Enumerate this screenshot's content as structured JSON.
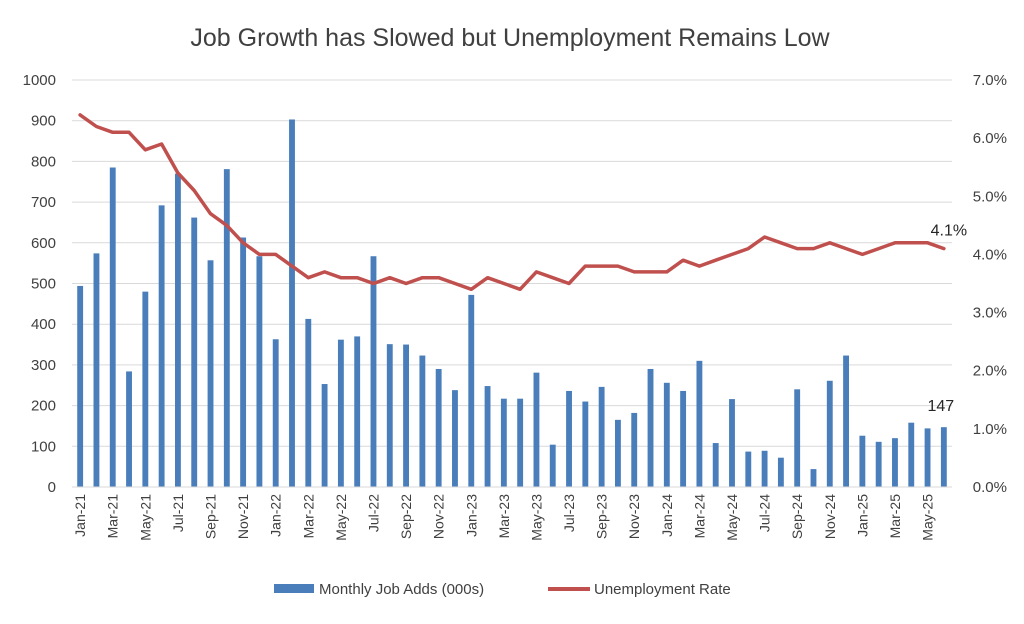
{
  "chart_data": {
    "type": "bar+line",
    "title": "Job Growth has Slowed but Unemployment Remains Low",
    "categories": [
      "Jan-21",
      "Feb-21",
      "Mar-21",
      "Apr-21",
      "May-21",
      "Jun-21",
      "Jul-21",
      "Aug-21",
      "Sep-21",
      "Oct-21",
      "Nov-21",
      "Dec-21",
      "Jan-22",
      "Feb-22",
      "Mar-22",
      "Apr-22",
      "May-22",
      "Jun-22",
      "Jul-22",
      "Aug-22",
      "Sep-22",
      "Oct-22",
      "Nov-22",
      "Dec-22",
      "Jan-23",
      "Feb-23",
      "Mar-23",
      "Apr-23",
      "May-23",
      "Jun-23",
      "Jul-23",
      "Aug-23",
      "Sep-23",
      "Oct-23",
      "Nov-23",
      "Dec-23",
      "Jan-24",
      "Feb-24",
      "Mar-24",
      "Apr-24",
      "May-24",
      "Jun-24",
      "Jul-24",
      "Aug-24",
      "Sep-24",
      "Oct-24",
      "Nov-24",
      "Dec-24",
      "Jan-25",
      "Feb-25",
      "Mar-25",
      "Apr-25",
      "May-25",
      "Jun-25"
    ],
    "xtick_labels": [
      "Jan-21",
      "Mar-21",
      "May-21",
      "Jul-21",
      "Sep-21",
      "Nov-21",
      "Jan-22",
      "Mar-22",
      "May-22",
      "Jul-22",
      "Sep-22",
      "Nov-22",
      "Jan-23",
      "Mar-23",
      "May-23",
      "Jul-23",
      "Sep-23",
      "Nov-23",
      "Jan-24",
      "Mar-24",
      "May-24",
      "Jul-24",
      "Sep-24",
      "Nov-24",
      "Jan-25",
      "Mar-25",
      "May-25"
    ],
    "series": [
      {
        "name": "Monthly Job Adds (000s)",
        "type": "bar",
        "axis": "left",
        "color": "#4a7ebb",
        "values": [
          494,
          574,
          785,
          284,
          480,
          692,
          770,
          662,
          557,
          781,
          613,
          567,
          363,
          903,
          413,
          253,
          362,
          370,
          567,
          351,
          350,
          323,
          290,
          238,
          472,
          248,
          217,
          217,
          281,
          104,
          236,
          210,
          246,
          165,
          182,
          290,
          256,
          236,
          310,
          108,
          216,
          87,
          89,
          72,
          240,
          44,
          261,
          323,
          126,
          111,
          120,
          158,
          144,
          147
        ]
      },
      {
        "name": "Unemployment Rate",
        "type": "line",
        "axis": "right",
        "color": "#c0504d",
        "values": [
          6.4,
          6.2,
          6.1,
          6.1,
          5.8,
          5.9,
          5.4,
          5.1,
          4.7,
          4.5,
          4.2,
          4.0,
          4.0,
          3.8,
          3.6,
          3.7,
          3.6,
          3.6,
          3.5,
          3.6,
          3.5,
          3.6,
          3.6,
          3.5,
          3.4,
          3.6,
          3.5,
          3.4,
          3.7,
          3.6,
          3.5,
          3.8,
          3.8,
          3.8,
          3.7,
          3.7,
          3.7,
          3.9,
          3.8,
          3.9,
          4.0,
          4.1,
          4.3,
          4.2,
          4.1,
          4.1,
          4.2,
          4.1,
          4.0,
          4.1,
          4.2,
          4.2,
          4.2,
          4.1
        ]
      }
    ],
    "y_left": {
      "min": 0,
      "max": 1000,
      "ticks": [
        "0",
        "100",
        "200",
        "300",
        "400",
        "500",
        "600",
        "700",
        "800",
        "900",
        "1000"
      ]
    },
    "y_right": {
      "min": 0,
      "max": 7,
      "ticks": [
        "0.0%",
        "1.0%",
        "2.0%",
        "3.0%",
        "4.0%",
        "5.0%",
        "6.0%",
        "7.0%"
      ]
    },
    "annotations": {
      "last_bar_label": "147",
      "last_rate_label": "4.1%"
    },
    "legend": {
      "placement": "bottom",
      "entries": [
        "Monthly Job Adds (000s)",
        "Unemployment Rate"
      ]
    },
    "grid": true
  }
}
